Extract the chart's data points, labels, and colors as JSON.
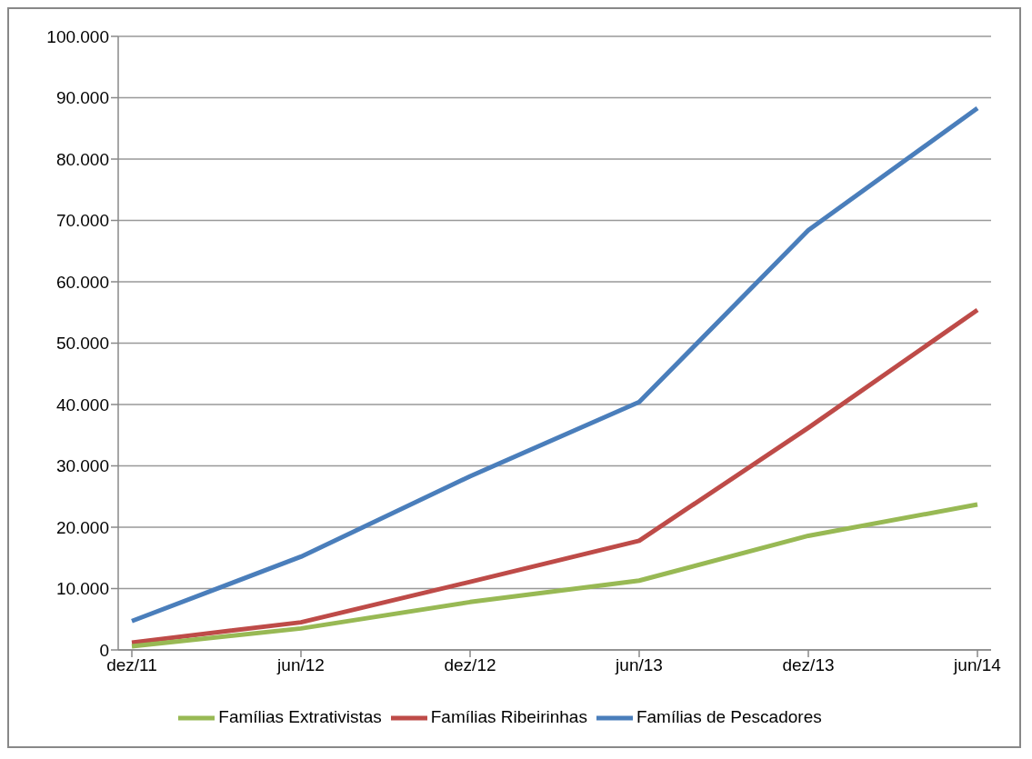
{
  "chart_data": {
    "type": "line",
    "categories": [
      "dez/11",
      "jun/12",
      "dez/12",
      "jun/13",
      "dez/13",
      "jun/14"
    ],
    "series": [
      {
        "name": "Famílias de Pescadores",
        "color": "#4a7ebb",
        "values": [
          4700,
          15200,
          28300,
          40400,
          68400,
          88300
        ]
      },
      {
        "name": "Famílias Ribeirinhas",
        "color": "#be4b48",
        "values": [
          1200,
          4500,
          11100,
          17800,
          36200,
          55400
        ]
      },
      {
        "name": "Famílias Extrativistas",
        "color": "#98b954",
        "values": [
          600,
          3500,
          7800,
          11300,
          18600,
          23700
        ]
      }
    ],
    "ylim": [
      0,
      100000
    ],
    "yticks": [
      {
        "value": 0,
        "label": "0"
      },
      {
        "value": 10000,
        "label": "10.000"
      },
      {
        "value": 20000,
        "label": "20.000"
      },
      {
        "value": 30000,
        "label": "30.000"
      },
      {
        "value": 40000,
        "label": "40.000"
      },
      {
        "value": 50000,
        "label": "50.000"
      },
      {
        "value": 60000,
        "label": "60.000"
      },
      {
        "value": 70000,
        "label": "70.000"
      },
      {
        "value": 80000,
        "label": "80.000"
      },
      {
        "value": 90000,
        "label": "90.000"
      },
      {
        "value": 100000,
        "label": "100.000"
      }
    ],
    "grid": "y",
    "legend": "bottom",
    "marker": "none",
    "line_style": "solid"
  }
}
